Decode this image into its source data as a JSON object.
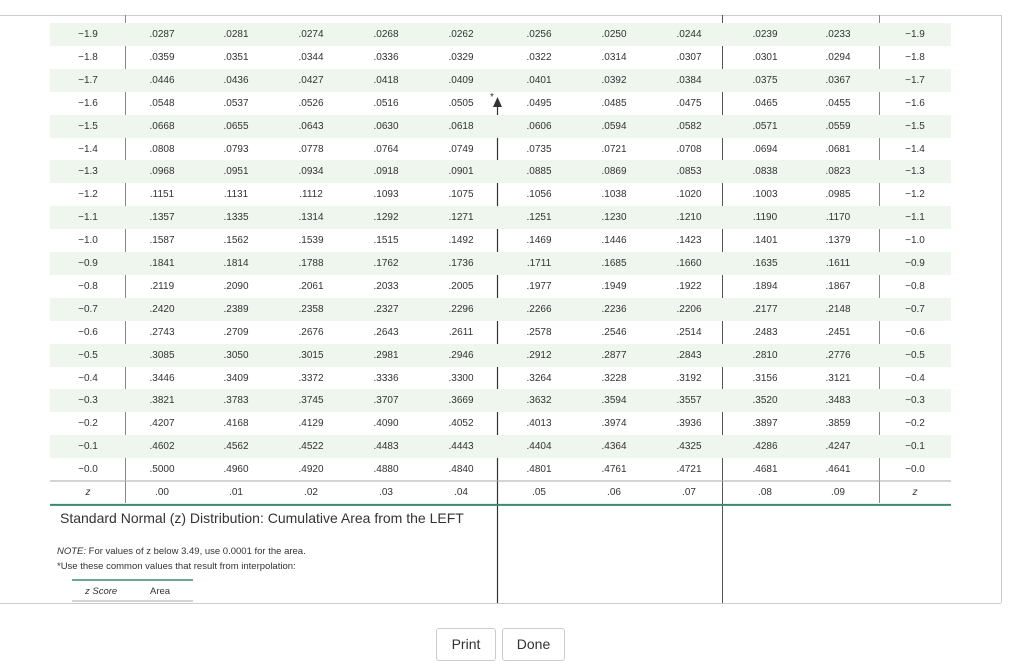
{
  "table": {
    "rows": [
      [
        "−1.9",
        ".0287",
        ".0281",
        ".0274",
        ".0268",
        ".0262",
        ".0256",
        ".0250",
        ".0244",
        ".0239",
        ".0233"
      ],
      [
        "−1.8",
        ".0359",
        ".0351",
        ".0344",
        ".0336",
        ".0329",
        ".0322",
        ".0314",
        ".0307",
        ".0301",
        ".0294"
      ],
      [
        "−1.7",
        ".0446",
        ".0436",
        ".0427",
        ".0418",
        ".0409",
        ".0401",
        ".0392",
        ".0384",
        ".0375",
        ".0367"
      ],
      [
        "−1.6",
        ".0548",
        ".0537",
        ".0526",
        ".0516",
        ".0505",
        ".0495",
        ".0485",
        ".0475",
        ".0465",
        ".0455"
      ],
      [
        "−1.5",
        ".0668",
        ".0655",
        ".0643",
        ".0630",
        ".0618",
        ".0606",
        ".0594",
        ".0582",
        ".0571",
        ".0559"
      ],
      [
        "−1.4",
        ".0808",
        ".0793",
        ".0778",
        ".0764",
        ".0749",
        ".0735",
        ".0721",
        ".0708",
        ".0694",
        ".0681"
      ],
      [
        "−1.3",
        ".0968",
        ".0951",
        ".0934",
        ".0918",
        ".0901",
        ".0885",
        ".0869",
        ".0853",
        ".0838",
        ".0823"
      ],
      [
        "−1.2",
        ".1151",
        ".1131",
        ".1112",
        ".1093",
        ".1075",
        ".1056",
        ".1038",
        ".1020",
        ".1003",
        ".0985"
      ],
      [
        "−1.1",
        ".1357",
        ".1335",
        ".1314",
        ".1292",
        ".1271",
        ".1251",
        ".1230",
        ".1210",
        ".1190",
        ".1170"
      ],
      [
        "−1.0",
        ".1587",
        ".1562",
        ".1539",
        ".1515",
        ".1492",
        ".1469",
        ".1446",
        ".1423",
        ".1401",
        ".1379"
      ],
      [
        "−0.9",
        ".1841",
        ".1814",
        ".1788",
        ".1762",
        ".1736",
        ".1711",
        ".1685",
        ".1660",
        ".1635",
        ".1611"
      ],
      [
        "−0.8",
        ".2119",
        ".2090",
        ".2061",
        ".2033",
        ".2005",
        ".1977",
        ".1949",
        ".1922",
        ".1894",
        ".1867"
      ],
      [
        "−0.7",
        ".2420",
        ".2389",
        ".2358",
        ".2327",
        ".2296",
        ".2266",
        ".2236",
        ".2206",
        ".2177",
        ".2148"
      ],
      [
        "−0.6",
        ".2743",
        ".2709",
        ".2676",
        ".2643",
        ".2611",
        ".2578",
        ".2546",
        ".2514",
        ".2483",
        ".2451"
      ],
      [
        "−0.5",
        ".3085",
        ".3050",
        ".3015",
        ".2981",
        ".2946",
        ".2912",
        ".2877",
        ".2843",
        ".2810",
        ".2776"
      ],
      [
        "−0.4",
        ".3446",
        ".3409",
        ".3372",
        ".3336",
        ".3300",
        ".3264",
        ".3228",
        ".3192",
        ".3156",
        ".3121"
      ],
      [
        "−0.3",
        ".3821",
        ".3783",
        ".3745",
        ".3707",
        ".3669",
        ".3632",
        ".3594",
        ".3557",
        ".3520",
        ".3483"
      ],
      [
        "−0.2",
        ".4207",
        ".4168",
        ".4129",
        ".4090",
        ".4052",
        ".4013",
        ".3974",
        ".3936",
        ".3897",
        ".3859"
      ],
      [
        "−0.1",
        ".4602",
        ".4562",
        ".4522",
        ".4483",
        ".4443",
        ".4404",
        ".4364",
        ".4325",
        ".4286",
        ".4247"
      ],
      [
        "−0.0",
        ".5000",
        ".4960",
        ".4920",
        ".4880",
        ".4840",
        ".4801",
        ".4761",
        ".4721",
        ".4681",
        ".4641"
      ]
    ],
    "footer": [
      "z",
      ".00",
      ".01",
      ".02",
      ".03",
      ".04",
      ".05",
      ".06",
      ".07",
      ".08",
      ".09",
      "z"
    ],
    "marker": "*"
  },
  "title": "Standard Normal (z) Distribution: Cumulative Area from the LEFT",
  "note": {
    "label": "NOTE:",
    "text": "For values of z below 3.49, use 0.0001 for the area.",
    "line2": "*Use these common values that result from interpolation:"
  },
  "mini_table": {
    "headers": [
      "z Score",
      "Area"
    ]
  },
  "buttons": [
    "Print",
    "Done"
  ]
}
